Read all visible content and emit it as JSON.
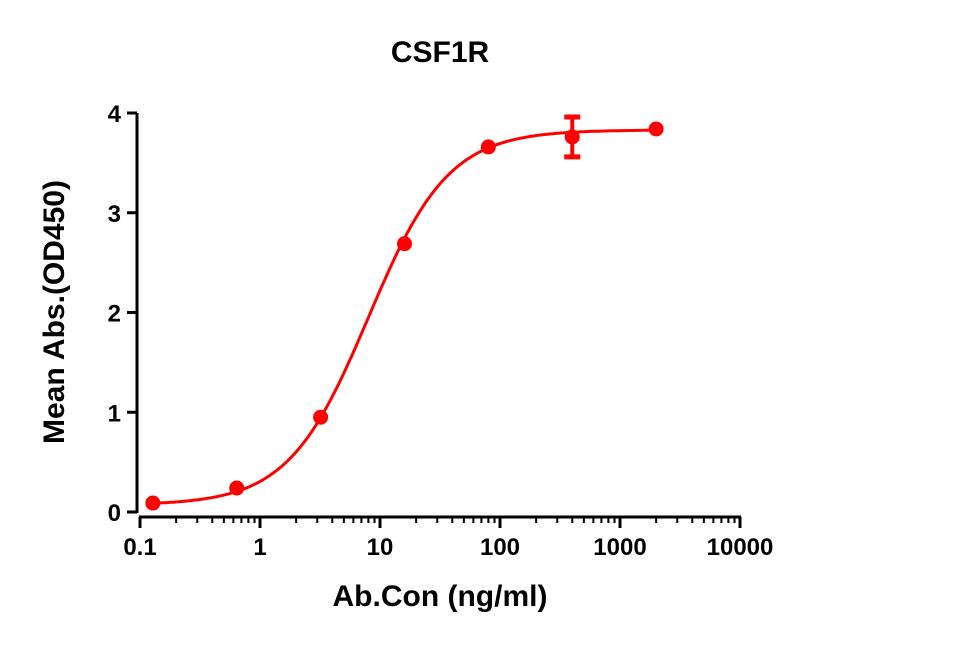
{
  "chart_data": {
    "type": "scatter",
    "title": "CSF1R",
    "xlabel": "Ab.Con (ng/ml)",
    "ylabel": "Mean Abs.(OD450)",
    "xscale": "log",
    "xlim": [
      0.1,
      10000
    ],
    "ylim": [
      0,
      4
    ],
    "xticks": [
      0.1,
      1,
      10,
      100,
      1000,
      10000
    ],
    "xtick_labels": [
      "0.1",
      "1",
      "10",
      "100",
      "1000",
      "10000"
    ],
    "yticks": [
      0,
      1,
      2,
      3,
      4
    ],
    "ytick_labels": [
      "0",
      "1",
      "2",
      "3",
      "4"
    ],
    "grid": false,
    "color": "#ff0000",
    "series": [
      {
        "name": "CSF1R",
        "x": [
          0.128,
          0.64,
          3.2,
          16,
          80,
          400,
          2000
        ],
        "y": [
          0.09,
          0.24,
          0.95,
          2.69,
          3.66,
          3.76,
          3.84
        ],
        "error": [
          0,
          0,
          0,
          0,
          0,
          0.2,
          0
        ]
      }
    ],
    "fit": {
      "model": "4PL",
      "bottom": 0.07,
      "top": 3.83,
      "ec50": 8,
      "hill": 1.3
    }
  }
}
